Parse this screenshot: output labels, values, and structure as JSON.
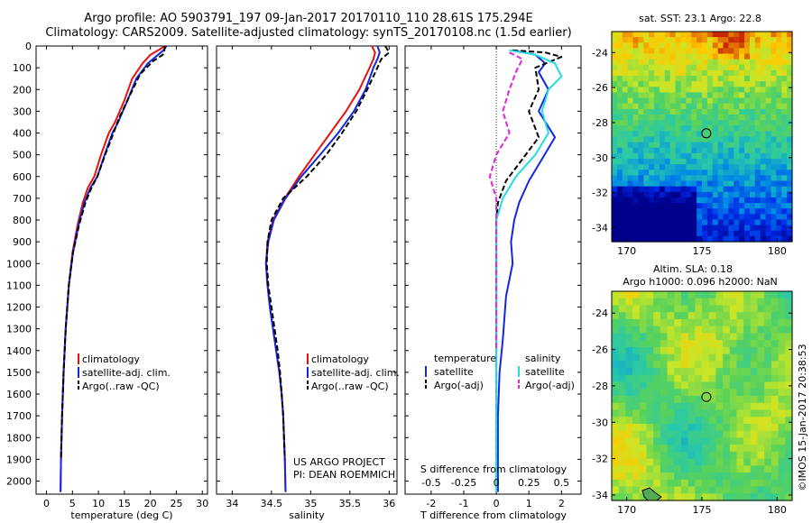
{
  "header": {
    "line1": "Argo profile: AO 5903791_197 09-Jan-2017 20170110_110 28.61S 175.294E",
    "line2": "Climatology: CARS2009. Satellite-adjusted climatology: synTS_20170108.nc (1.5d earlier)"
  },
  "colors": {
    "climatology": "#e8120c",
    "satellite": "#1326e0",
    "argo": "#000000",
    "sal_satellite": "#22dde0",
    "sal_argo": "#e026d4"
  },
  "chart_data": [
    {
      "type": "line",
      "xlabel": "temperature (deg C)",
      "xlim": [
        -2,
        31
      ],
      "xticks": [
        0,
        5,
        10,
        15,
        20,
        25,
        30
      ],
      "ylim": [
        0,
        2060
      ],
      "yticks": [
        0,
        100,
        200,
        300,
        400,
        500,
        600,
        700,
        800,
        900,
        1000,
        1100,
        1200,
        1300,
        1400,
        1500,
        1600,
        1700,
        1800,
        1900,
        2000
      ],
      "y_reversed": true,
      "legend": [
        "climatology",
        "satellite-adj. clim.",
        "Argo(..raw -QC)"
      ],
      "legend_position": "lower-middle",
      "series": [
        {
          "name": "climatology",
          "style": "solid",
          "color": "#e8120c",
          "points": [
            [
              22.8,
              0
            ],
            [
              21.5,
              20
            ],
            [
              20,
              40
            ],
            [
              18.5,
              80
            ],
            [
              16.5,
              150
            ],
            [
              15,
              250
            ],
            [
              13.2,
              350
            ],
            [
              12,
              400
            ],
            [
              10.5,
              500
            ],
            [
              9.2,
              600
            ],
            [
              8,
              650
            ],
            [
              7,
              720
            ],
            [
              6,
              820
            ],
            [
              5,
              950
            ],
            [
              4.3,
              1100
            ],
            [
              3.7,
              1300
            ],
            [
              3.3,
              1500
            ],
            [
              3,
              1700
            ],
            [
              2.8,
              1900
            ],
            [
              2.7,
              2050
            ]
          ]
        },
        {
          "name": "satellite-adj. clim.",
          "style": "solid",
          "color": "#1326e0",
          "points": [
            [
              23.1,
              0
            ],
            [
              22.5,
              20
            ],
            [
              21.5,
              40
            ],
            [
              19.5,
              80
            ],
            [
              17.3,
              150
            ],
            [
              15.6,
              250
            ],
            [
              13.8,
              350
            ],
            [
              12.7,
              400
            ],
            [
              11.2,
              500
            ],
            [
              9.8,
              600
            ],
            [
              8.5,
              650
            ],
            [
              7.3,
              720
            ],
            [
              6.2,
              820
            ],
            [
              5.1,
              950
            ],
            [
              4.3,
              1100
            ],
            [
              3.7,
              1300
            ],
            [
              3.3,
              1500
            ],
            [
              3,
              1700
            ],
            [
              2.8,
              1900
            ],
            [
              2.7,
              2050
            ]
          ]
        },
        {
          "name": "Argo(..raw -QC)",
          "style": "dashed",
          "color": "#000000",
          "points": [
            [
              22.8,
              0
            ],
            [
              22.7,
              20
            ],
            [
              22.4,
              40
            ],
            [
              20.5,
              70
            ],
            [
              18,
              130
            ],
            [
              16,
              230
            ],
            [
              14,
              330
            ],
            [
              12.9,
              400
            ],
            [
              11.3,
              500
            ],
            [
              9.8,
              600
            ],
            [
              8.7,
              650
            ],
            [
              7.5,
              720
            ],
            [
              6.3,
              820
            ],
            [
              5.1,
              950
            ],
            [
              4.3,
              1100
            ],
            [
              3.7,
              1300
            ],
            [
              3.3,
              1500
            ],
            [
              3,
              1700
            ],
            [
              2.8,
              1900
            ]
          ]
        }
      ]
    },
    {
      "type": "line",
      "xlabel": "salinity",
      "xlim": [
        33.8,
        36.1
      ],
      "xticks": [
        34,
        34.5,
        35,
        35.5,
        36
      ],
      "ylim": [
        0,
        2060
      ],
      "y_reversed": true,
      "legend": [
        "climatology",
        "satellite-adj. clim.",
        "Argo(..raw -QC)"
      ],
      "legend_position": "lower-right",
      "annotation": [
        "US ARGO PROJECT",
        "PI: DEAN ROEMMICH"
      ],
      "series": [
        {
          "name": "climatology",
          "style": "solid",
          "color": "#e8120c",
          "points": [
            [
              35.78,
              0
            ],
            [
              35.82,
              30
            ],
            [
              35.8,
              60
            ],
            [
              35.75,
              100
            ],
            [
              35.62,
              200
            ],
            [
              35.45,
              300
            ],
            [
              35.25,
              400
            ],
            [
              35.05,
              500
            ],
            [
              34.85,
              600
            ],
            [
              34.67,
              700
            ],
            [
              34.52,
              800
            ],
            [
              34.45,
              900
            ],
            [
              34.43,
              1000
            ],
            [
              34.45,
              1100
            ],
            [
              34.48,
              1200
            ],
            [
              34.52,
              1300
            ],
            [
              34.56,
              1400
            ],
            [
              34.6,
              1500
            ],
            [
              34.63,
              1600
            ],
            [
              34.65,
              1700
            ],
            [
              34.66,
              1800
            ],
            [
              34.67,
              1900
            ],
            [
              34.68,
              2050
            ]
          ]
        },
        {
          "name": "satellite-adj. clim.",
          "style": "solid",
          "color": "#1326e0",
          "points": [
            [
              35.85,
              0
            ],
            [
              35.88,
              30
            ],
            [
              35.85,
              60
            ],
            [
              35.8,
              100
            ],
            [
              35.7,
              200
            ],
            [
              35.55,
              300
            ],
            [
              35.35,
              400
            ],
            [
              35.12,
              500
            ],
            [
              34.88,
              600
            ],
            [
              34.68,
              700
            ],
            [
              34.53,
              800
            ],
            [
              34.46,
              900
            ],
            [
              34.43,
              1000
            ],
            [
              34.45,
              1100
            ],
            [
              34.48,
              1200
            ],
            [
              34.52,
              1300
            ],
            [
              34.56,
              1400
            ],
            [
              34.6,
              1500
            ],
            [
              34.63,
              1600
            ],
            [
              34.65,
              1700
            ],
            [
              34.66,
              1800
            ],
            [
              34.67,
              1900
            ],
            [
              34.68,
              2050
            ]
          ]
        },
        {
          "name": "Argo(..raw -QC)",
          "style": "dashed",
          "color": "#000000",
          "points": [
            [
              35.95,
              0
            ],
            [
              36,
              30
            ],
            [
              35.9,
              60
            ],
            [
              35.85,
              100
            ],
            [
              35.72,
              200
            ],
            [
              35.58,
              300
            ],
            [
              35.4,
              400
            ],
            [
              35.2,
              500
            ],
            [
              34.95,
              600
            ],
            [
              34.65,
              700
            ],
            [
              34.5,
              800
            ],
            [
              34.45,
              900
            ],
            [
              34.44,
              1000
            ],
            [
              34.46,
              1100
            ],
            [
              34.5,
              1200
            ],
            [
              34.54,
              1300
            ],
            [
              34.58,
              1400
            ],
            [
              34.61,
              1500
            ],
            [
              34.63,
              1600
            ],
            [
              34.65,
              1700
            ],
            [
              34.66,
              1800
            ],
            [
              34.67,
              1900
            ]
          ]
        }
      ]
    },
    {
      "type": "line",
      "xlabel": "T difference from climatology",
      "xlabel_top": "S difference from climatology",
      "xlim": [
        -2.8,
        2.6
      ],
      "xticks": [
        -2,
        -1,
        0,
        1,
        2
      ],
      "xticks_top": [
        -0.5,
        -0.25,
        0,
        0.25,
        0.5
      ],
      "ylim": [
        0,
        2060
      ],
      "y_reversed": true,
      "legend_temperature": {
        "title": "temperature",
        "items": [
          "satellite",
          "Argo(-adj)"
        ]
      },
      "legend_salinity": {
        "title": "salinity",
        "items": [
          "satellite",
          "Argo(-adj)"
        ]
      },
      "series": [
        {
          "name": "satellite",
          "group": "temperature",
          "style": "solid",
          "color": "#1326e0",
          "points": [
            [
              0.5,
              20
            ],
            [
              1.2,
              40
            ],
            [
              1.5,
              80
            ],
            [
              1.3,
              120
            ],
            [
              1.6,
              200
            ],
            [
              1.3,
              300
            ],
            [
              1.8,
              420
            ],
            [
              1.4,
              520
            ],
            [
              1,
              620
            ],
            [
              0.7,
              720
            ],
            [
              0.55,
              800
            ],
            [
              0.45,
              900
            ],
            [
              0.5,
              1000
            ],
            [
              0.3,
              1150
            ],
            [
              0.2,
              1350
            ],
            [
              0.1,
              1500
            ],
            [
              0.05,
              1700
            ],
            [
              0.05,
              2050
            ]
          ]
        },
        {
          "name": "Argo(-adj)",
          "group": "temperature",
          "style": "dashed",
          "color": "#000000",
          "points": [
            [
              0.5,
              20
            ],
            [
              1.5,
              30
            ],
            [
              2,
              50
            ],
            [
              1.2,
              100
            ],
            [
              1.3,
              200
            ],
            [
              1,
              300
            ],
            [
              1.3,
              420
            ],
            [
              0.8,
              520
            ],
            [
              0.3,
              620
            ],
            [
              0.05,
              720
            ],
            [
              0,
              800
            ],
            [
              0,
              900
            ],
            [
              0,
              1100
            ],
            [
              0,
              1300
            ],
            [
              0,
              1500
            ],
            [
              0,
              1900
            ]
          ]
        },
        {
          "name": "satellite",
          "group": "salinity",
          "style": "solid",
          "color": "#22dde0",
          "points": [
            [
              0.1,
              20
            ],
            [
              0.3,
              40
            ],
            [
              0.45,
              80
            ],
            [
              0.5,
              140
            ],
            [
              0.4,
              200
            ],
            [
              0.35,
              300
            ],
            [
              0.4,
              400
            ],
            [
              0.3,
              500
            ],
            [
              0.15,
              600
            ],
            [
              0.05,
              700
            ],
            [
              0,
              800
            ],
            [
              0,
              1000
            ],
            [
              0,
              1200
            ],
            [
              0,
              1400
            ],
            [
              0,
              1600
            ],
            [
              0,
              1800
            ],
            [
              0,
              2050
            ]
          ]
        },
        {
          "name": "Argo(-adj)",
          "group": "salinity",
          "style": "dashed",
          "color": "#e026d4",
          "points": [
            [
              0.1,
              30
            ],
            [
              0.2,
              60
            ],
            [
              0.15,
              120
            ],
            [
              0.1,
              200
            ],
            [
              0.05,
              300
            ],
            [
              0.1,
              400
            ],
            [
              0,
              500
            ],
            [
              -0.05,
              600
            ],
            [
              0,
              700
            ],
            [
              0,
              900
            ],
            [
              0,
              1200
            ],
            [
              0,
              1400
            ]
          ]
        }
      ]
    },
    {
      "type": "heatmap",
      "title": "sat. SST: 23.1  Argo: 22.8",
      "xlim": [
        169,
        181
      ],
      "xticks": [
        170,
        175,
        180
      ],
      "ylim": [
        -34.8,
        -22.8
      ],
      "yticks": [
        -24,
        -26,
        -28,
        -30,
        -32,
        -34
      ],
      "marker": {
        "lon": 175.294,
        "lat": -28.61
      }
    },
    {
      "type": "heatmap",
      "title": "Altim. SLA: 0.18",
      "subtitle": "Argo h1000: 0.096 h2000: NaN",
      "xlim": [
        169,
        181
      ],
      "xticks": [
        170,
        175,
        180
      ],
      "ylim": [
        -34.3,
        -22.8
      ],
      "yticks": [
        -24,
        -26,
        -28,
        -30,
        -32,
        -34
      ],
      "marker": {
        "lon": 175.294,
        "lat": -28.61
      }
    }
  ],
  "footer": {
    "credit": "©IMOS 15-Jan-2017 20:38:53"
  }
}
